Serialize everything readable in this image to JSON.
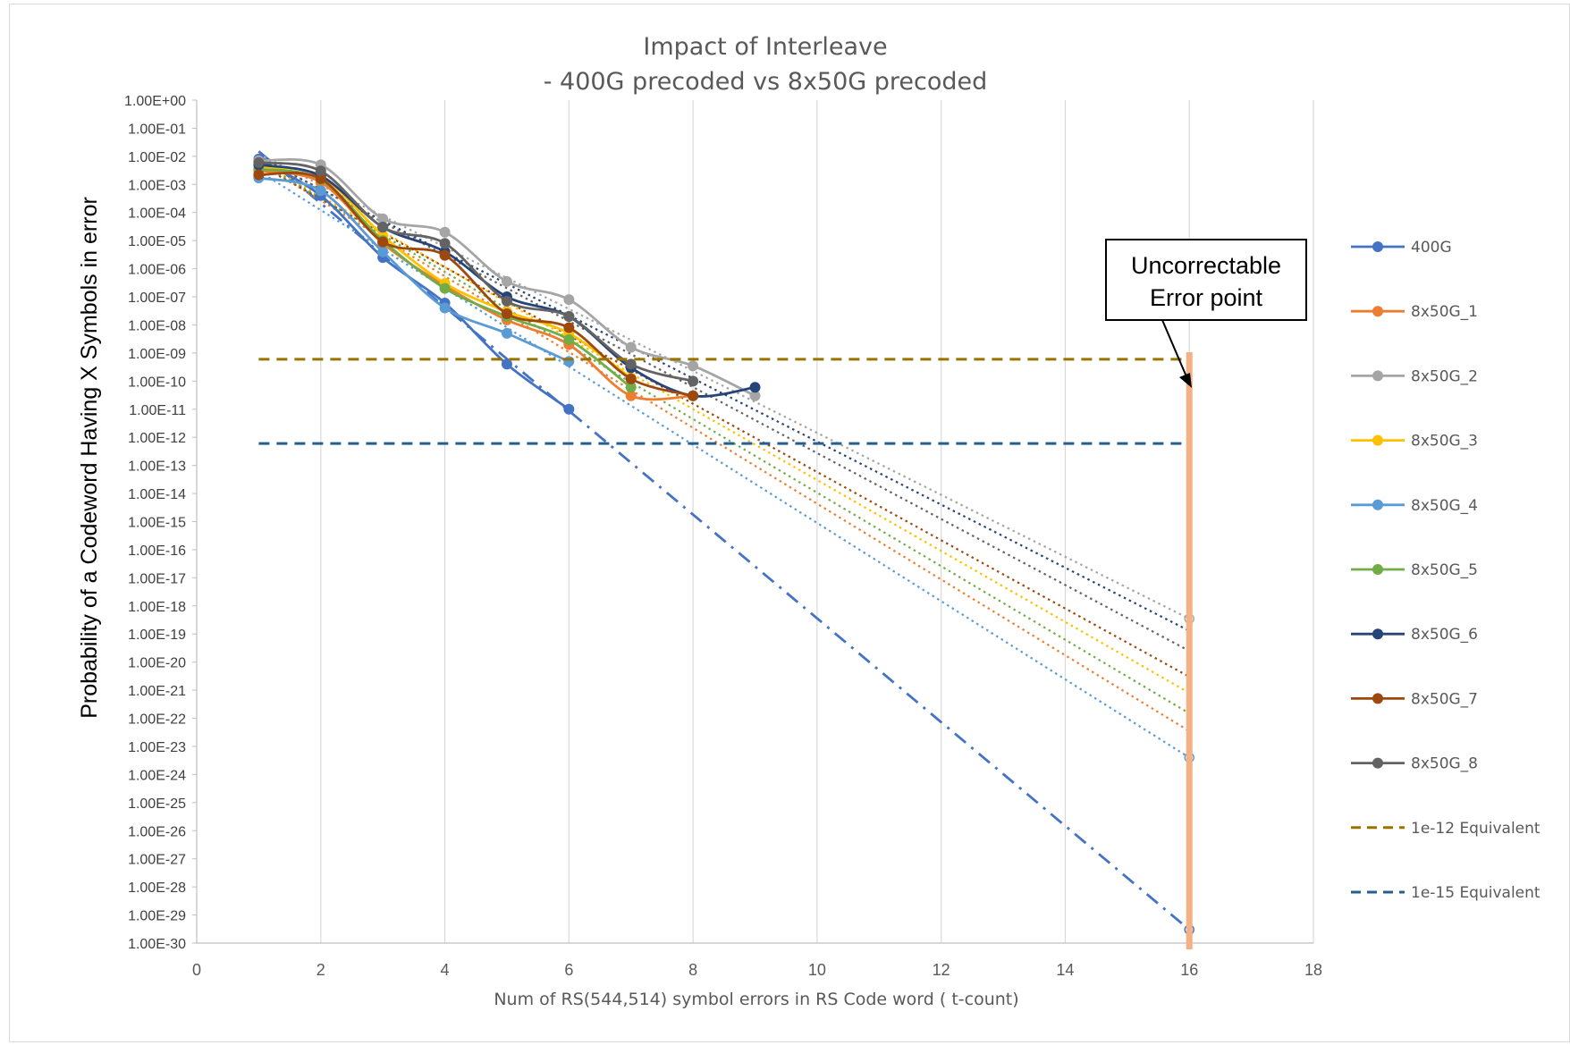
{
  "chart_data": {
    "type": "line",
    "title": [
      "Impact of Interleave",
      "- 400G precoded  vs 8x50G precoded"
    ],
    "xlabel": "Num of RS(544,514) symbol errors in RS Code word ( t-count)",
    "ylabel": "Probability of a Codeword Having X Symbols in error",
    "xlim": [
      0,
      18
    ],
    "x_ticks": [
      "0",
      "2",
      "4",
      "6",
      "8",
      "10",
      "12",
      "14",
      "16",
      "18"
    ],
    "yscale": "log",
    "ylim_exp": [
      -30,
      0
    ],
    "y_ticks": [
      "1.00E+00",
      "1.00E-01",
      "1.00E-02",
      "1.00E-03",
      "1.00E-04",
      "1.00E-05",
      "1.00E-06",
      "1.00E-07",
      "1.00E-08",
      "1.00E-09",
      "1.00E-10",
      "1.00E-11",
      "1.00E-12",
      "1.00E-13",
      "1.00E-14",
      "1.00E-15",
      "1.00E-16",
      "1.00E-17",
      "1.00E-18",
      "1.00E-19",
      "1.00E-20",
      "1.00E-21",
      "1.00E-22",
      "1.00E-23",
      "1.00E-24",
      "1.00E-25",
      "1.00E-26",
      "1.00E-27",
      "1.00E-28",
      "1.00E-29",
      "1.00E-30"
    ],
    "grid": "vertical",
    "legend_position": "right",
    "series": [
      {
        "name": "400G",
        "color": "#4472c4",
        "x": [
          1,
          2,
          3,
          4,
          5,
          6
        ],
        "y": [
          0.008,
          0.0004,
          2.5e-06,
          6e-08,
          4e-10,
          1e-11
        ],
        "trend": {
          "style": "dash-dot",
          "x": [
            1,
            16
          ],
          "y": [
            0.015,
            3e-30
          ]
        }
      },
      {
        "name": "8x50G_1",
        "color": "#ed7d31",
        "x": [
          1,
          2,
          3,
          4,
          5,
          6,
          7,
          8
        ],
        "y": [
          0.003,
          0.0012,
          8e-06,
          2.5e-07,
          1.5e-08,
          2e-09,
          3e-11,
          3e-11
        ],
        "trend": {
          "style": "dotted",
          "x": [
            1,
            16
          ],
          "y": [
            0.006,
            3.5e-23
          ]
        }
      },
      {
        "name": "8x50G_2",
        "color": "#a5a5a5",
        "x": [
          1,
          2,
          3,
          4,
          5,
          6,
          7,
          8,
          9
        ],
        "y": [
          0.007,
          0.005,
          6e-05,
          2e-05,
          3.5e-07,
          8e-08,
          1.6e-09,
          3.5e-10,
          3e-11
        ],
        "trend": {
          "style": "dotted",
          "x": [
            1,
            16
          ],
          "y": [
            0.012,
            3.5e-19
          ]
        }
      },
      {
        "name": "8x50G_3",
        "color": "#ffc000",
        "x": [
          1,
          2,
          3,
          4,
          5,
          6,
          7
        ],
        "y": [
          0.004,
          0.002,
          1.5e-05,
          3e-07,
          3e-08,
          5e-09,
          1.3e-10
        ],
        "trend": {
          "style": "dotted",
          "x": [
            1,
            16
          ],
          "y": [
            0.007,
            8e-22
          ]
        }
      },
      {
        "name": "8x50G_4",
        "color": "#5b9bd5",
        "x": [
          1,
          2,
          3,
          4,
          5,
          6
        ],
        "y": [
          0.0017,
          0.0006,
          4e-06,
          4e-08,
          5e-09,
          5e-10
        ],
        "trend": {
          "style": "dotted",
          "x": [
            1,
            16
          ],
          "y": [
            0.003,
            4e-24
          ]
        }
      },
      {
        "name": "8x50G_5",
        "color": "#70ad47",
        "x": [
          1,
          2,
          3,
          4,
          5,
          6,
          7
        ],
        "y": [
          0.0035,
          0.0015,
          1e-05,
          2e-07,
          2e-08,
          3e-09,
          6e-11
        ],
        "trend": {
          "style": "dotted",
          "x": [
            1,
            16
          ],
          "y": [
            0.0065,
            1.5e-22
          ]
        }
      },
      {
        "name": "8x50G_6",
        "color": "#264478",
        "x": [
          1,
          2,
          3,
          4,
          5,
          6,
          7,
          8,
          9
        ],
        "y": [
          0.005,
          0.002,
          3e-05,
          4e-06,
          1e-07,
          2e-08,
          3e-10,
          3e-11,
          6e-11
        ],
        "trend": {
          "style": "dotted",
          "x": [
            1,
            16
          ],
          "y": [
            0.009,
            1.3e-19
          ]
        }
      },
      {
        "name": "8x50G_7",
        "color": "#9e480e",
        "x": [
          1,
          2,
          3,
          4,
          5,
          6,
          7,
          8
        ],
        "y": [
          0.0022,
          0.0016,
          9e-06,
          3e-06,
          2.5e-08,
          8e-09,
          1.2e-10,
          3e-11
        ],
        "trend": {
          "style": "dotted",
          "x": [
            1,
            16
          ],
          "y": [
            0.005,
            3e-21
          ]
        }
      },
      {
        "name": "8x50G_8",
        "color": "#636363",
        "x": [
          1,
          2,
          3,
          4,
          5,
          6,
          7,
          8
        ],
        "y": [
          0.006,
          0.003,
          3e-05,
          8e-06,
          7e-08,
          2e-08,
          4e-10,
          1e-10
        ],
        "trend": {
          "style": "dotted",
          "x": [
            1,
            16
          ],
          "y": [
            0.01,
            2.5e-20
          ]
        }
      },
      {
        "name": "1e-12 Equivalent",
        "color": "#997300",
        "style": "dashed",
        "x": [
          1,
          16
        ],
        "y": [
          6e-10,
          6e-10
        ]
      },
      {
        "name": "1e-15 Equivalent",
        "color": "#255e91",
        "style": "dashed",
        "x": [
          1,
          16
        ],
        "y": [
          6e-13,
          6e-13
        ]
      }
    ],
    "vertical_marker": {
      "x": 16,
      "color": "#f4b183"
    },
    "annotation": {
      "text": [
        "Uncorrectable",
        "Error point"
      ],
      "points_to_x": 16
    }
  }
}
